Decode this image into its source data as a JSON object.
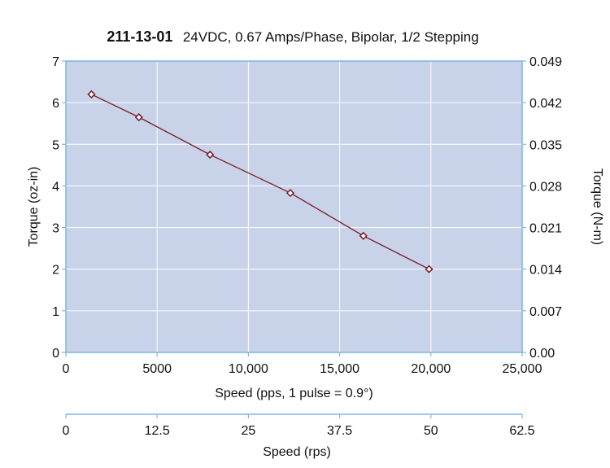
{
  "chart_data": {
    "type": "line",
    "title_bold": "211-13-01",
    "title_rest": "24VDC, 0.67 Amps/Phase, Bipolar, 1/2 Stepping",
    "xlabel": "Speed (pps, 1 pulse = 0.9°)",
    "ylabel_left": "Torque (oz-in)",
    "ylabel_right": "Torque (N-m)",
    "secondary_xlabel": "Speed (rps)",
    "xlim": [
      0,
      25000
    ],
    "ylim": [
      0,
      7
    ],
    "ylim_right": [
      0,
      0.049
    ],
    "secondary_xlim": [
      0,
      62.5
    ],
    "x_ticks": [
      "0",
      "5000",
      "10,000",
      "15,000",
      "20,000",
      "25,000"
    ],
    "x_tick_values": [
      0,
      5000,
      10000,
      15000,
      20000,
      25000
    ],
    "y_ticks": [
      "0",
      "1",
      "2",
      "3",
      "4",
      "5",
      "6",
      "7"
    ],
    "y_tick_values": [
      0,
      1,
      2,
      3,
      4,
      5,
      6,
      7
    ],
    "y_right_ticks": [
      "0.00",
      "0.007",
      "0.014",
      "0.021",
      "0.028",
      "0.035",
      "0.042",
      "0.049"
    ],
    "secondary_x_ticks": [
      "0",
      "12.5",
      "25",
      "37.5",
      "50",
      "62.5"
    ],
    "secondary_x_tick_values": [
      0,
      12.5,
      25,
      37.5,
      50,
      62.5
    ],
    "grid": true,
    "series": [
      {
        "x": [
          1400,
          4000,
          7900,
          12300,
          16300,
          19900
        ],
        "y": [
          6.2,
          5.65,
          4.75,
          3.83,
          2.8,
          2.0
        ]
      }
    ],
    "colors": {
      "plot_background": "#c8d3ea",
      "gridline": "#ffffff",
      "axis_line": "#7fb7de",
      "series_line": "#7a1a24",
      "marker_fill": "#ffffff"
    }
  }
}
